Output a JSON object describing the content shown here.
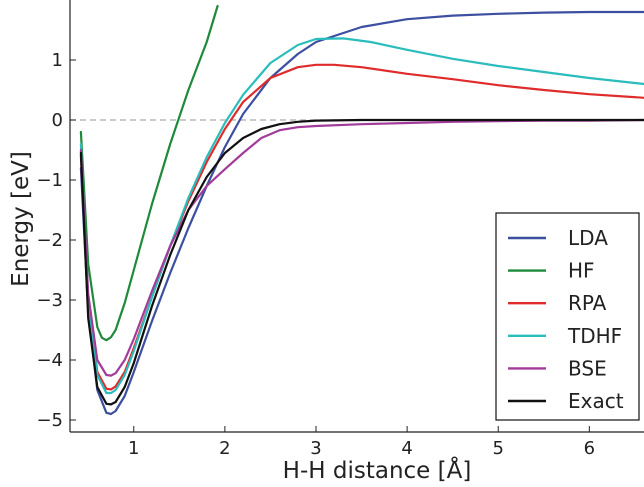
{
  "chart_data": {
    "type": "line",
    "xlabel": "H-H distance [Å]",
    "ylabel": "Energy [eV]",
    "xlim": [
      0.3,
      6.6
    ],
    "ylim": [
      -5.2,
      1.9
    ],
    "x_ticks": [
      1,
      2,
      3,
      4,
      5,
      6
    ],
    "y_ticks": [
      1,
      0,
      -1,
      -2,
      -3,
      -4,
      -5
    ],
    "x_tick_labels": [
      "1",
      "2",
      "3",
      "4",
      "5",
      "6"
    ],
    "y_tick_labels": [
      "1",
      "0",
      "−1",
      "−2",
      "−3",
      "−4",
      "−5"
    ],
    "reference_line": {
      "y": 0,
      "style": "dashed",
      "color": "#aaaaaa"
    },
    "grid": false,
    "legend_position": "lower-right",
    "series": [
      {
        "name": "LDA",
        "color": "#3c4fa0",
        "x": [
          0.42,
          0.5,
          0.6,
          0.7,
          0.75,
          0.8,
          0.9,
          1.0,
          1.2,
          1.4,
          1.6,
          1.8,
          2.0,
          2.2,
          2.5,
          2.8,
          3.0,
          3.5,
          4.0,
          4.5,
          5.0,
          5.5,
          6.0,
          6.6
        ],
        "y": [
          -0.8,
          -3.2,
          -4.5,
          -4.88,
          -4.9,
          -4.85,
          -4.6,
          -4.2,
          -3.35,
          -2.55,
          -1.8,
          -1.1,
          -0.45,
          0.1,
          0.7,
          1.1,
          1.3,
          1.55,
          1.68,
          1.74,
          1.77,
          1.79,
          1.8,
          1.8
        ]
      },
      {
        "name": "HF",
        "color": "#1e8a3a",
        "x": [
          0.42,
          0.5,
          0.6,
          0.65,
          0.7,
          0.75,
          0.8,
          0.9,
          1.0,
          1.1,
          1.2,
          1.4,
          1.6,
          1.8,
          1.92
        ],
        "y": [
          -0.2,
          -2.4,
          -3.45,
          -3.63,
          -3.67,
          -3.62,
          -3.5,
          -3.05,
          -2.5,
          -1.95,
          -1.4,
          -0.4,
          0.5,
          1.3,
          1.9
        ]
      },
      {
        "name": "RPA",
        "color": "#e02b2b",
        "x": [
          0.42,
          0.5,
          0.6,
          0.7,
          0.75,
          0.8,
          0.9,
          1.0,
          1.2,
          1.4,
          1.6,
          1.8,
          2.0,
          2.2,
          2.5,
          2.8,
          3.0,
          3.2,
          3.5,
          4.0,
          4.5,
          5.0,
          5.5,
          6.0,
          6.6
        ],
        "y": [
          -0.6,
          -3.0,
          -4.2,
          -4.48,
          -4.49,
          -4.44,
          -4.2,
          -3.8,
          -2.95,
          -2.1,
          -1.35,
          -0.7,
          -0.15,
          0.3,
          0.7,
          0.88,
          0.92,
          0.92,
          0.88,
          0.77,
          0.68,
          0.58,
          0.5,
          0.43,
          0.37
        ]
      },
      {
        "name": "TDHF",
        "color": "#2bbcbc",
        "x": [
          0.42,
          0.5,
          0.6,
          0.7,
          0.75,
          0.8,
          0.9,
          1.0,
          1.2,
          1.4,
          1.6,
          1.8,
          2.0,
          2.2,
          2.5,
          2.8,
          3.0,
          3.3,
          3.6,
          4.0,
          4.5,
          5.0,
          5.5,
          6.0,
          6.6
        ],
        "y": [
          -0.4,
          -3.0,
          -4.25,
          -4.55,
          -4.55,
          -4.5,
          -4.25,
          -3.85,
          -2.95,
          -2.1,
          -1.3,
          -0.62,
          -0.05,
          0.42,
          0.95,
          1.25,
          1.35,
          1.36,
          1.3,
          1.17,
          1.02,
          0.9,
          0.8,
          0.7,
          0.6
        ]
      },
      {
        "name": "BSE",
        "color": "#a23b9a",
        "x": [
          0.42,
          0.5,
          0.6,
          0.7,
          0.75,
          0.8,
          0.9,
          1.0,
          1.2,
          1.4,
          1.6,
          1.8,
          2.0,
          2.2,
          2.4,
          2.6,
          2.8,
          3.0,
          3.5,
          4.0,
          4.5,
          5.0,
          5.5,
          6.0,
          6.6
        ],
        "y": [
          -0.5,
          -2.9,
          -4.0,
          -4.25,
          -4.26,
          -4.22,
          -4.0,
          -3.65,
          -2.85,
          -2.1,
          -1.5,
          -1.1,
          -0.82,
          -0.55,
          -0.3,
          -0.17,
          -0.12,
          -0.1,
          -0.07,
          -0.05,
          -0.03,
          -0.02,
          -0.01,
          -0.01,
          0.0
        ]
      },
      {
        "name": "Exact",
        "color": "#111111",
        "x": [
          0.42,
          0.5,
          0.6,
          0.7,
          0.75,
          0.8,
          0.9,
          1.0,
          1.2,
          1.4,
          1.6,
          1.8,
          2.0,
          2.2,
          2.4,
          2.6,
          2.8,
          3.0,
          3.5,
          4.0,
          4.5,
          5.0,
          5.5,
          6.0,
          6.6
        ],
        "y": [
          -0.55,
          -3.3,
          -4.45,
          -4.73,
          -4.74,
          -4.7,
          -4.45,
          -4.05,
          -3.1,
          -2.25,
          -1.5,
          -0.95,
          -0.55,
          -0.3,
          -0.15,
          -0.07,
          -0.03,
          -0.01,
          0.0,
          0.0,
          0.0,
          0.0,
          0.0,
          0.0,
          0.0
        ]
      }
    ]
  }
}
